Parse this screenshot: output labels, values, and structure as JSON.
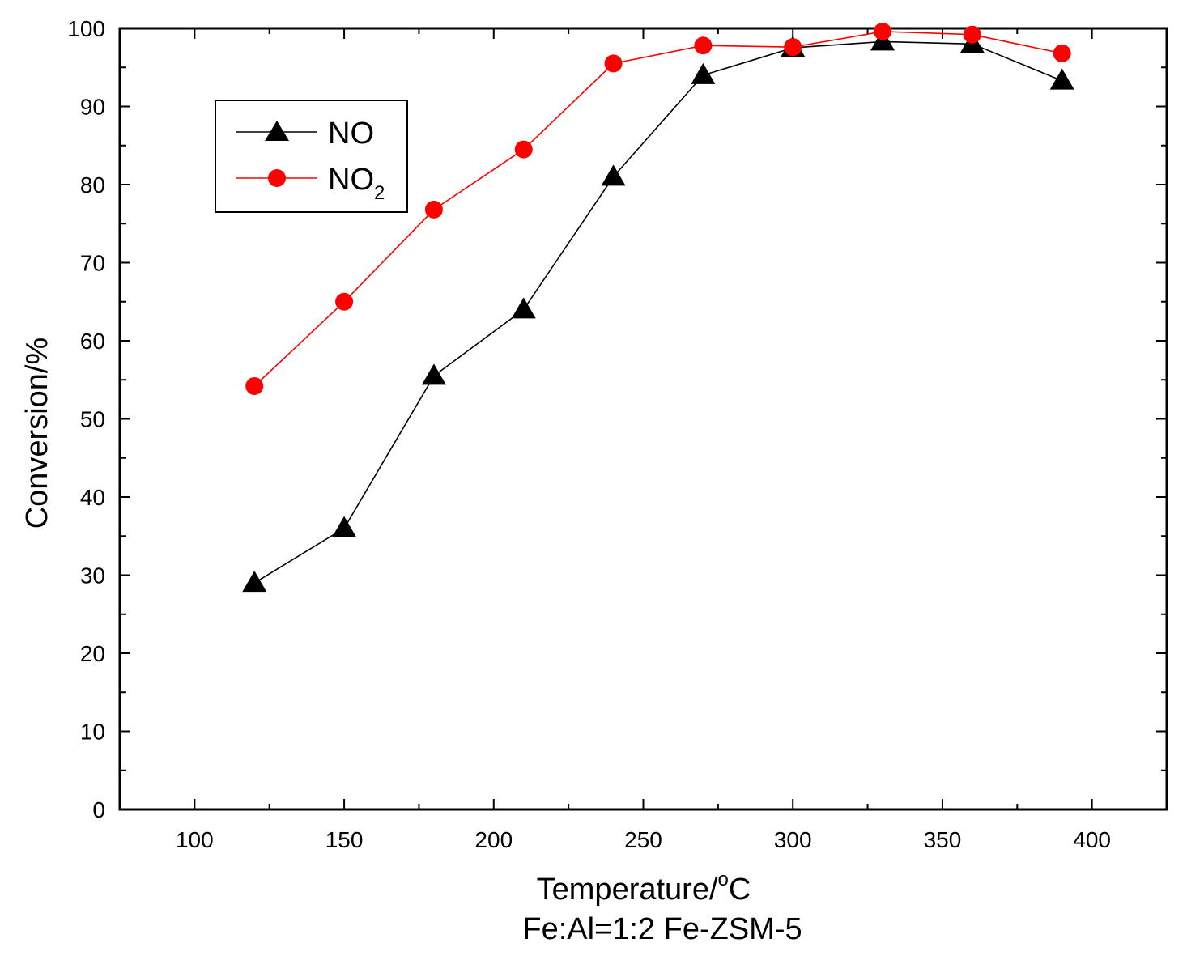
{
  "chart_data": {
    "type": "line",
    "title": "",
    "xlabel": {
      "main": "Temperature/",
      "sup": "o",
      "unit": "C"
    },
    "ylabel": "Conversion/%",
    "caption": "Fe:Al=1:2 Fe-ZSM-5",
    "xlim": [
      75,
      425
    ],
    "ylim": [
      0,
      100
    ],
    "xticks": [
      100,
      150,
      200,
      250,
      300,
      350,
      400
    ],
    "yticks": [
      0,
      10,
      20,
      30,
      40,
      50,
      60,
      70,
      80,
      90,
      100
    ],
    "x": [
      120,
      150,
      180,
      210,
      240,
      270,
      300,
      330,
      360,
      390
    ],
    "series": [
      {
        "name": "NO",
        "name_sub": "",
        "color": "#000000",
        "marker": "triangle",
        "values": [
          29,
          36,
          55.5,
          64,
          81,
          94,
          97.5,
          98.3,
          98,
          93.3
        ]
      },
      {
        "name": "NO",
        "name_sub": "2",
        "color": "#ff0000",
        "marker": "circle",
        "values": [
          54.2,
          65,
          76.8,
          84.5,
          95.5,
          97.8,
          97.6,
          99.6,
          99.2,
          96.8
        ]
      }
    ],
    "legend_position": "upper-left",
    "grid": false
  }
}
